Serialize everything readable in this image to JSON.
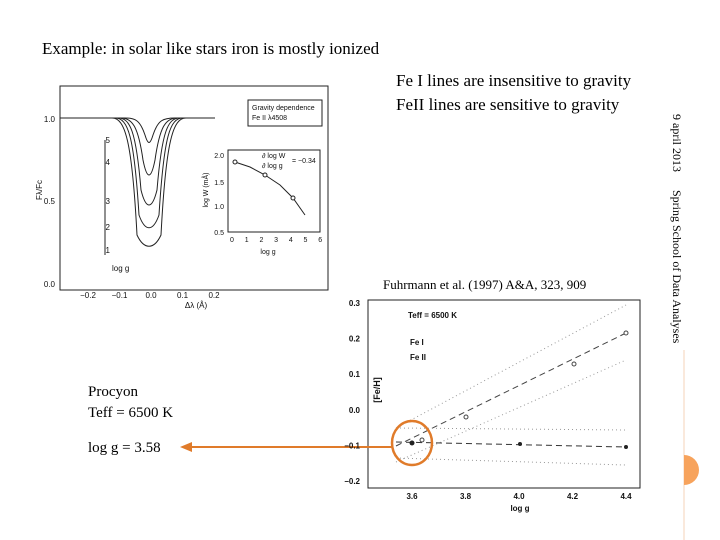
{
  "slide": {
    "title": "Example: in solar like stars iron is mostly ionized",
    "points": [
      "Fe I lines are insensitive to gravity",
      "FeII lines are sensitive to gravity"
    ],
    "side": {
      "date": "9 april 2013",
      "event": "Spring School of Data Analyses"
    },
    "caption": "Fuhrmann et al. (1997) A&A, 323, 909",
    "star": [
      "Procyon",
      "Teff = 6500 K",
      "log g = 3.58"
    ]
  },
  "figure_profiles": {
    "yticks": [
      "1.0",
      "0.5",
      "0.0"
    ],
    "xticks": [
      "−0.2",
      "−0.1",
      "0.0",
      "0.1",
      "0.2"
    ],
    "xlabel": "Δλ (Å)",
    "ylabel": "Fλ/Fc",
    "curve_labels": [
      "5",
      "4",
      "3",
      "2",
      "1"
    ],
    "arrow_label": "log g",
    "legend": [
      "Gravity dependence",
      "Fe II λ4508"
    ],
    "inset": {
      "yticks": [
        "2.0",
        "1.5",
        "1.0",
        "0.5"
      ],
      "xticks": [
        "0",
        "1",
        "2",
        "3",
        "4",
        "5",
        "6"
      ],
      "xlabel": "log g",
      "ylabel": "log W (mÅ)",
      "annotation": [
        "∂ log W",
        "∂ log g",
        "= −0.34"
      ]
    }
  },
  "figure_abundance": {
    "yticks": [
      "0.3",
      "0.2",
      "0.1",
      "0.0",
      "−0.1",
      "−0.2"
    ],
    "xticks": [
      "3.6",
      "3.8",
      "4.0",
      "4.2",
      "4.4"
    ],
    "xlabel": "log g",
    "ylabel": "[Fe/H]",
    "legend": [
      "Teff = 6500 K",
      "Fe I",
      "Fe II"
    ]
  }
}
